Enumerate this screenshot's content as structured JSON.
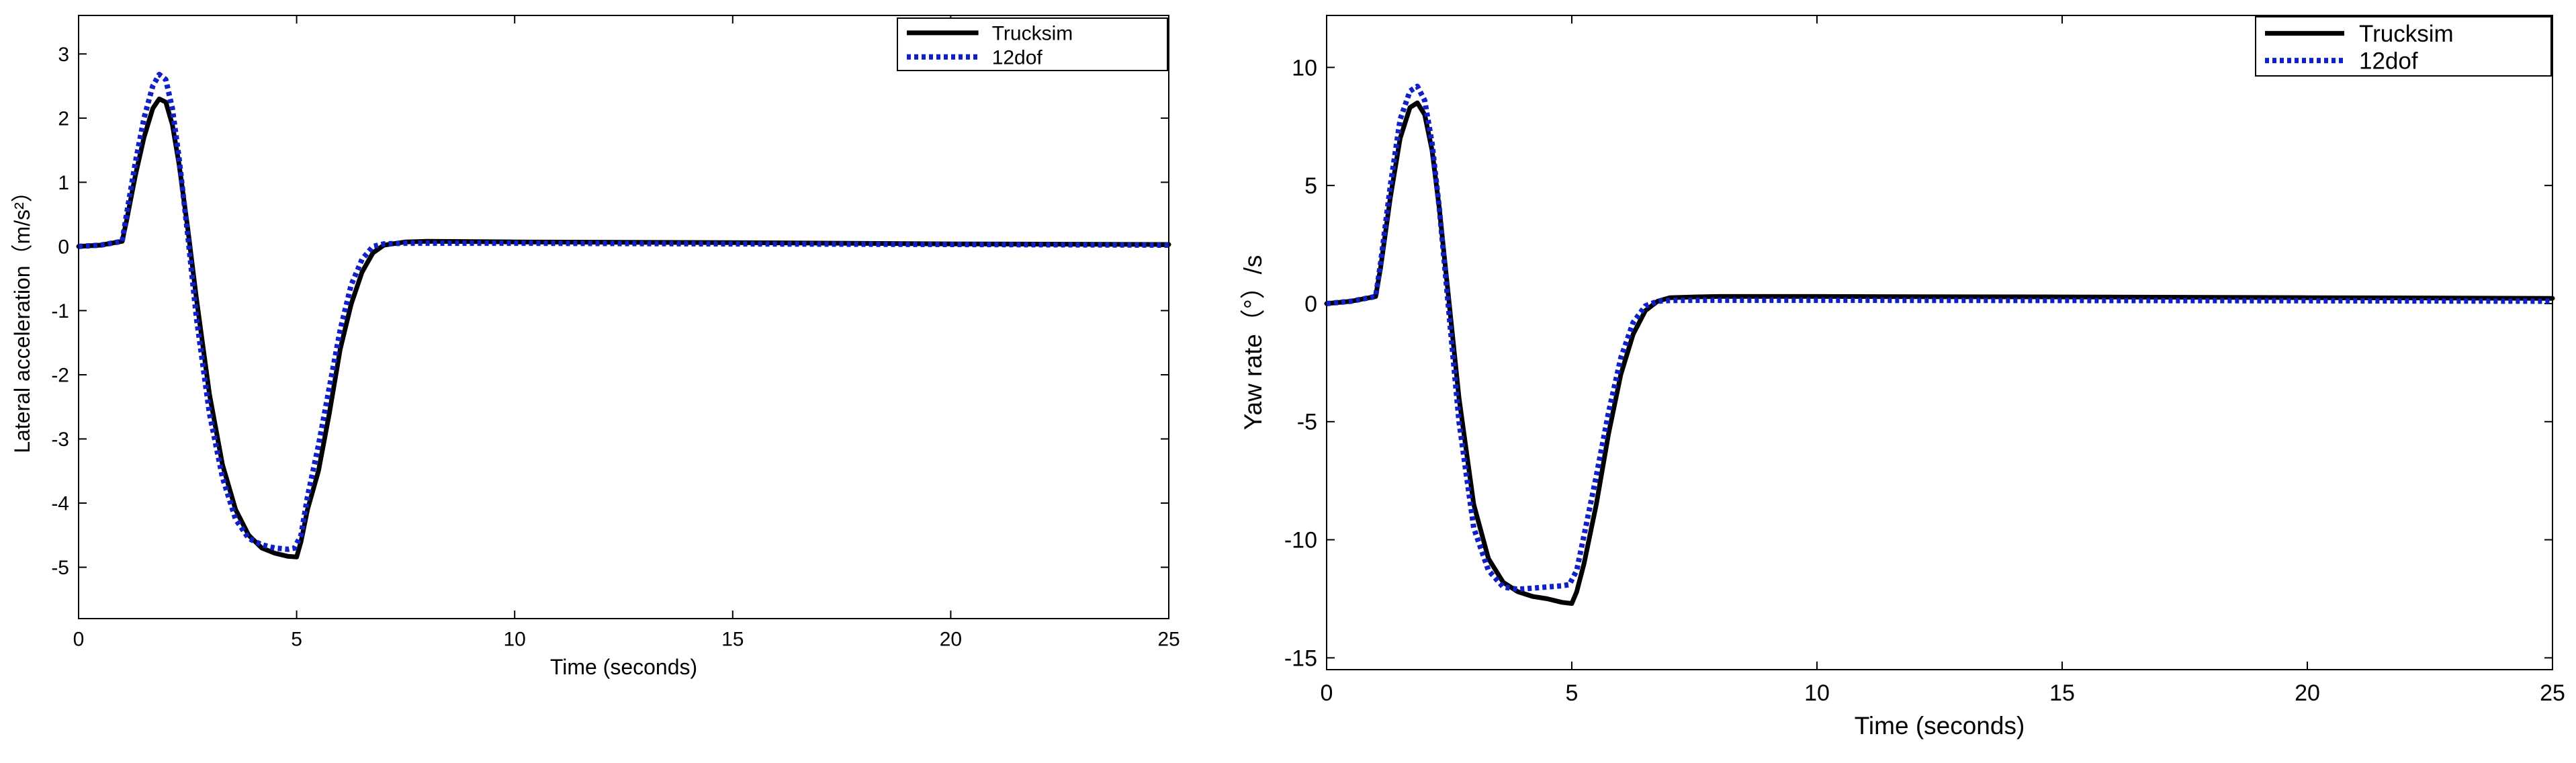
{
  "chart_data": [
    {
      "type": "line",
      "title": "",
      "xlabel": "Time (seconds)",
      "ylabel": "Lateral acceleration（m/s²）",
      "xlim": [
        0,
        25
      ],
      "ylim": [
        -5.8,
        3.6
      ],
      "xticks": [
        0,
        5,
        10,
        15,
        20,
        25
      ],
      "yticks": [
        -5,
        -4,
        -3,
        -2,
        -1,
        0,
        1,
        2,
        3
      ],
      "grid": false,
      "legend_position": "top-right",
      "series": [
        {
          "name": "Trucksim",
          "color": "#000000",
          "style": "solid",
          "x": [
            0,
            0.5,
            1.0,
            1.1,
            1.3,
            1.5,
            1.7,
            1.85,
            2.0,
            2.15,
            2.3,
            2.5,
            2.7,
            3.0,
            3.3,
            3.6,
            3.9,
            4.2,
            4.5,
            4.8,
            5.0,
            5.1,
            5.25,
            5.5,
            5.75,
            6.0,
            6.25,
            6.5,
            6.75,
            7.0,
            7.5,
            8.0,
            10,
            15,
            20,
            25
          ],
          "y": [
            0.0,
            0.02,
            0.08,
            0.4,
            1.1,
            1.7,
            2.15,
            2.3,
            2.25,
            1.9,
            1.3,
            0.3,
            -0.8,
            -2.3,
            -3.4,
            -4.1,
            -4.5,
            -4.7,
            -4.78,
            -4.83,
            -4.84,
            -4.6,
            -4.1,
            -3.5,
            -2.6,
            -1.6,
            -0.9,
            -0.4,
            -0.1,
            0.02,
            0.07,
            0.08,
            0.07,
            0.06,
            0.04,
            0.03
          ]
        },
        {
          "name": "12dof",
          "color": "#1020c8",
          "style": "dotted",
          "x": [
            0,
            0.5,
            1.0,
            1.1,
            1.3,
            1.5,
            1.7,
            1.85,
            2.0,
            2.15,
            2.3,
            2.5,
            2.7,
            3.0,
            3.3,
            3.6,
            3.9,
            4.2,
            4.5,
            4.8,
            4.95,
            5.1,
            5.25,
            5.5,
            5.75,
            6.0,
            6.25,
            6.5,
            6.75,
            7.0,
            7.5,
            8.0,
            10,
            15,
            20,
            25
          ],
          "y": [
            0.0,
            0.02,
            0.08,
            0.5,
            1.3,
            2.0,
            2.5,
            2.68,
            2.6,
            2.15,
            1.4,
            0.2,
            -1.1,
            -2.6,
            -3.6,
            -4.25,
            -4.55,
            -4.65,
            -4.7,
            -4.72,
            -4.7,
            -4.5,
            -3.9,
            -3.1,
            -2.2,
            -1.3,
            -0.6,
            -0.2,
            0.0,
            0.04,
            0.05,
            0.05,
            0.05,
            0.04,
            0.03,
            0.02
          ]
        }
      ]
    },
    {
      "type": "line",
      "title": "",
      "xlabel": "Time (seconds)",
      "ylabel": "Yaw rate（°）/s",
      "xlim": [
        0,
        25
      ],
      "ylim": [
        -15.5,
        12.2
      ],
      "xticks": [
        0,
        5,
        10,
        15,
        20,
        25
      ],
      "yticks": [
        -15,
        -10,
        -5,
        0,
        5,
        10
      ],
      "grid": false,
      "legend_position": "top-right",
      "series": [
        {
          "name": "Trucksim",
          "color": "#000000",
          "style": "solid",
          "x": [
            0,
            0.5,
            1.0,
            1.1,
            1.3,
            1.5,
            1.7,
            1.85,
            2.0,
            2.15,
            2.3,
            2.5,
            2.7,
            3.0,
            3.3,
            3.6,
            3.9,
            4.2,
            4.5,
            4.8,
            5.0,
            5.1,
            5.25,
            5.5,
            5.75,
            6.0,
            6.25,
            6.5,
            6.75,
            7.0,
            7.5,
            8.0,
            10,
            15,
            20,
            25
          ],
          "y": [
            0.0,
            0.1,
            0.3,
            1.5,
            4.5,
            7.0,
            8.3,
            8.5,
            8.0,
            6.5,
            4.0,
            0.0,
            -4.0,
            -8.5,
            -10.8,
            -11.8,
            -12.2,
            -12.4,
            -12.5,
            -12.65,
            -12.7,
            -12.2,
            -11.0,
            -8.5,
            -5.5,
            -3.0,
            -1.3,
            -0.3,
            0.1,
            0.25,
            0.28,
            0.3,
            0.3,
            0.28,
            0.25,
            0.22
          ]
        },
        {
          "name": "12dof",
          "color": "#1020c8",
          "style": "dotted",
          "x": [
            0,
            0.5,
            1.0,
            1.1,
            1.3,
            1.5,
            1.7,
            1.85,
            2.0,
            2.15,
            2.3,
            2.5,
            2.7,
            3.0,
            3.3,
            3.6,
            3.9,
            4.2,
            4.5,
            4.8,
            4.95,
            5.1,
            5.25,
            5.5,
            5.75,
            6.0,
            6.25,
            6.5,
            6.75,
            7.0,
            7.5,
            8.0,
            10,
            15,
            20,
            25
          ],
          "y": [
            0.0,
            0.1,
            0.3,
            1.7,
            5.0,
            7.8,
            9.0,
            9.2,
            8.6,
            6.8,
            4.0,
            -0.5,
            -5.0,
            -9.5,
            -11.3,
            -12.0,
            -12.1,
            -12.05,
            -12.0,
            -11.95,
            -11.9,
            -11.3,
            -9.8,
            -7.3,
            -4.6,
            -2.3,
            -0.8,
            -0.1,
            0.1,
            0.13,
            0.14,
            0.14,
            0.14,
            0.13,
            0.12,
            0.1
          ]
        }
      ]
    }
  ]
}
